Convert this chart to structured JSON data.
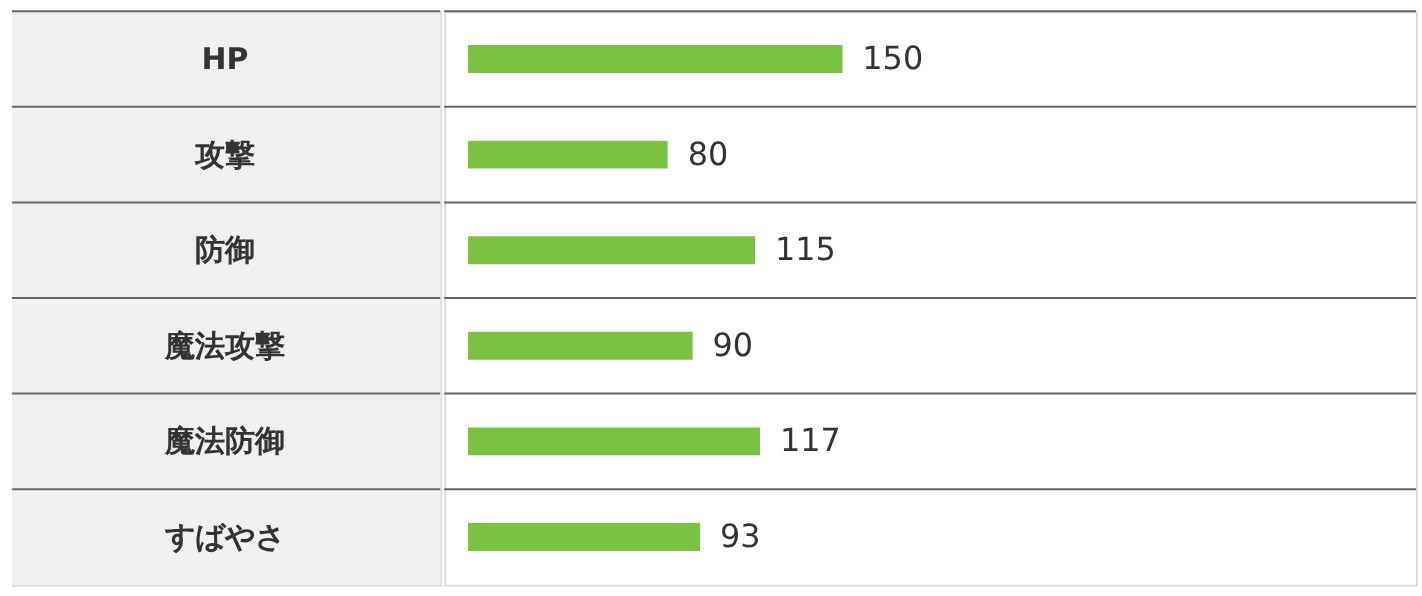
{
  "chart_data": {
    "type": "bar",
    "orientation": "horizontal",
    "categories": [
      "HP",
      "攻撃",
      "防御",
      "魔法攻撃",
      "魔法防御",
      "すばやさ"
    ],
    "values": [
      150,
      80,
      115,
      90,
      117,
      93
    ],
    "color": "#7cc242",
    "data_labels": true,
    "tick_labels": "y"
  }
}
